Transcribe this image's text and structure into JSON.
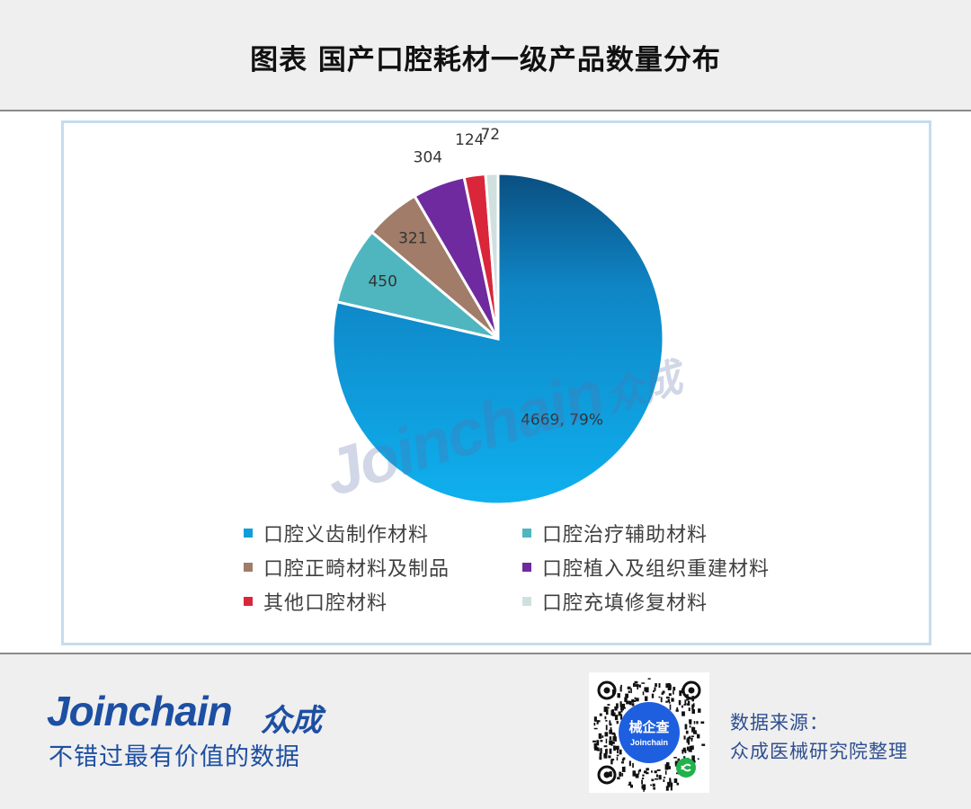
{
  "header": {
    "title": "图表 国产口腔耗材一级产品数量分布"
  },
  "chart_data": {
    "type": "pie",
    "title": "",
    "categories": [
      "口腔义齿制作材料",
      "口腔治疗辅助材料",
      "口腔正畸材料及制品",
      "口腔植入及组织重建材料",
      "其他口腔材料",
      "口腔充填修复材料"
    ],
    "values": [
      4669,
      450,
      321,
      304,
      124,
      72
    ],
    "data_labels": [
      "4669, 79%",
      "450",
      "321",
      "304",
      "124",
      "72"
    ],
    "colors": [
      "#0b9ed8",
      "#4fb6bf",
      "#a07c69",
      "#6f2aa0",
      "#d9263a",
      "#cfe0df"
    ],
    "legend_position": "bottom",
    "start_angle_degrees": 0,
    "direction": "clockwise"
  },
  "watermark": {
    "brand": "Joinchain",
    "brand_cn": "众成"
  },
  "footer": {
    "brand": "Joinchain",
    "brand_cn": "众成",
    "slogan": "不错过最有价值的数据",
    "qr_center_title": "械企查",
    "qr_center_sub": "Joinchain",
    "source_line1": "数据来源：",
    "source_line2": "众成医械研究院整理"
  }
}
